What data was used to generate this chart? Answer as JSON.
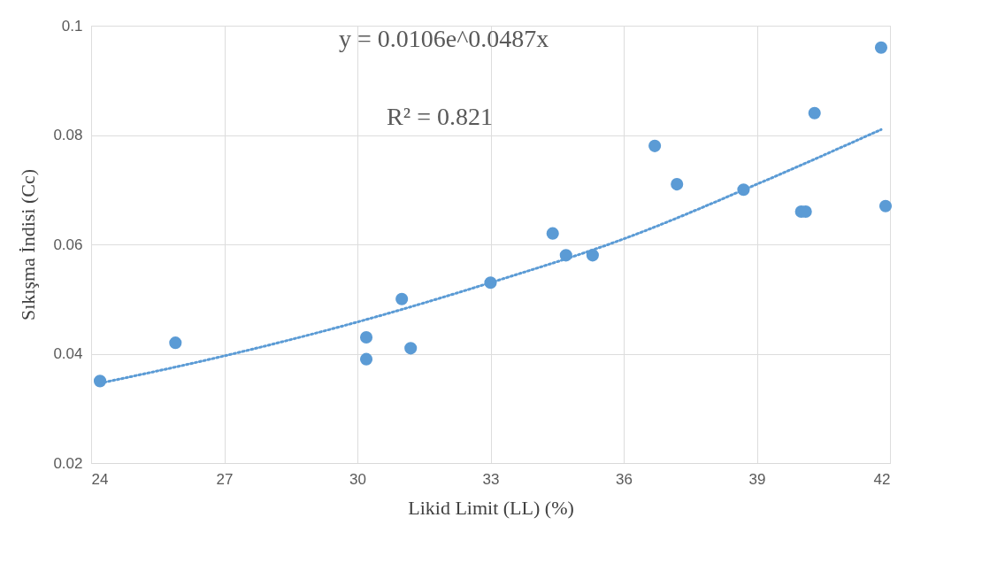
{
  "chart_data": {
    "type": "scatter",
    "xlabel": "Likid Limit (LL) (%)",
    "ylabel": "Sıkışma İndisi (Cc)",
    "xlim": [
      24,
      42
    ],
    "xticks": [
      24,
      27,
      30,
      33,
      36,
      39,
      42
    ],
    "ylim": [
      0.02,
      0.1
    ],
    "yticks": [
      0.02,
      0.04,
      0.06,
      0.08,
      0.1
    ],
    "grid": true,
    "legend": false,
    "marker": "circle",
    "series": [
      {
        "color": "#5b9bd5",
        "x": [
          24.2,
          25.9,
          30.2,
          30.2,
          31.0,
          31.2,
          33.0,
          34.4,
          34.7,
          35.3,
          36.7,
          37.2,
          38.7,
          40.0,
          40.1,
          40.3,
          41.8,
          41.9
        ],
        "values": [
          0.035,
          0.042,
          0.043,
          0.039,
          0.05,
          0.041,
          0.053,
          0.062,
          0.058,
          0.058,
          0.078,
          0.071,
          0.07,
          0.066,
          0.066,
          0.084,
          0.096,
          0.067
        ]
      },
      {
        "type": "line",
        "color": "#5b9bd5",
        "line_style": "dotted",
        "marker": "none",
        "x": [
          24.2,
          27,
          30,
          33,
          36,
          39,
          41.8
        ],
        "values": [
          0.0346,
          0.0396,
          0.0458,
          0.053,
          0.061,
          0.071,
          0.081
        ]
      }
    ],
    "annotations": [
      "y = 0.0106e^0.0487x",
      "R² = 0.821"
    ]
  }
}
